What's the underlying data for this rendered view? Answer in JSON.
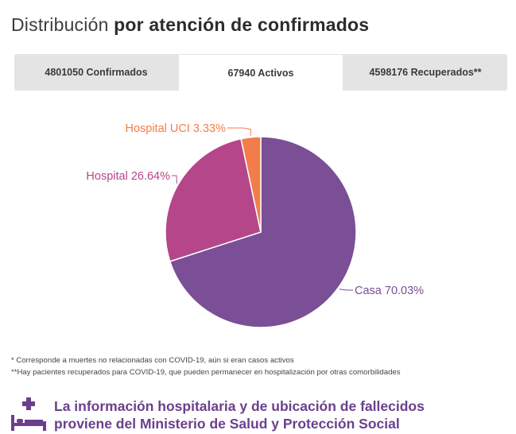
{
  "title": {
    "regular": "Distribución",
    "bold": "por atención de confirmados"
  },
  "tabs": [
    {
      "label": "4801050 Confirmados",
      "active": false
    },
    {
      "label": "67940 Activos",
      "active": true
    },
    {
      "label": "4598176 Recuperados**",
      "active": false
    }
  ],
  "chart_data": {
    "type": "pie",
    "categories": [
      "Casa",
      "Hospital",
      "Hospital UCI"
    ],
    "values": [
      70.03,
      26.64,
      3.33
    ],
    "labels": [
      "Casa 70.03%",
      "Hospital 26.64%",
      "Hospital UCI 3.33%"
    ],
    "colors": [
      "#7a4f95",
      "#b5468a",
      "#f37d4a"
    ],
    "label_colors": [
      "#7a4f95",
      "#b5468a",
      "#f37d4a"
    ]
  },
  "notes": [
    "* Corresponde a muertes no relacionadas con COVID-19, aún si eran casos activos",
    "**Hay pacientes recuperados para COVID-19, que pueden permanecer en hospitalización por otras comorbilidades"
  ],
  "footer": {
    "line1": "La información hospitalaria y de ubicación de fallecidos",
    "line2": "proviene del Ministerio de Salud y Protección Social",
    "icon": "hospital-bed-icon",
    "color": "#6b3f8e"
  }
}
